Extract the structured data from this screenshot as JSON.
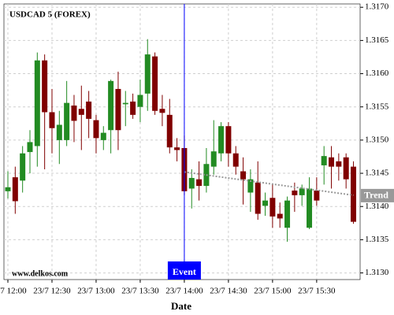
{
  "chart_data": {
    "type": "candlestick",
    "title": "USDCAD 5 (FOREX)",
    "watermark": "www.delkos.com",
    "x_label": "Date",
    "categories": [
      "23/7 12:00",
      "23/7 12:05",
      "23/7 12:10",
      "23/7 12:15",
      "23/7 12:20",
      "23/7 12:25",
      "23/7 12:30",
      "23/7 12:35",
      "23/7 12:40",
      "23/7 12:45",
      "23/7 12:50",
      "23/7 12:55",
      "23/7 13:00",
      "23/7 13:05",
      "23/7 13:10",
      "23/7 13:15",
      "23/7 13:20",
      "23/7 13:25",
      "23/7 13:30",
      "23/7 13:35",
      "23/7 13:40",
      "23/7 13:45",
      "23/7 13:50",
      "23/7 13:55",
      "23/7 14:00",
      "23/7 14:05",
      "23/7 14:10",
      "23/7 14:15",
      "23/7 14:20",
      "23/7 14:25",
      "23/7 14:30",
      "23/7 14:35",
      "23/7 14:40",
      "23/7 14:45",
      "23/7 14:50",
      "23/7 14:55",
      "23/7 15:00",
      "23/7 15:05",
      "23/7 15:10",
      "23/7 15:15",
      "23/7 15:20",
      "23/7 15:25",
      "23/7 15:30",
      "23/7 15:35",
      "23/7 15:40",
      "23/7 15:45",
      "23/7 15:50",
      "23/7 15:55"
    ],
    "open": [
      1.31423,
      1.31444,
      1.31439,
      1.31482,
      1.31491,
      1.3162,
      1.31542,
      1.315,
      1.315,
      1.31552,
      1.31547,
      1.31558,
      1.3153,
      1.315,
      1.31515,
      1.31577,
      1.31554,
      1.31558,
      1.3155,
      1.3157,
      1.31626,
      1.31547,
      1.31538,
      1.31489,
      1.31488,
      1.31427,
      1.31441,
      1.31431,
      1.3146,
      1.3148,
      1.31521,
      1.3148,
      1.31453,
      1.31421,
      1.31436,
      1.31401,
      1.31413,
      1.31389,
      1.31368,
      1.31424,
      1.31417,
      1.31368,
      1.31424,
      1.31462,
      1.31474,
      1.31468,
      1.31474,
      1.3146
    ],
    "high": [
      1.31453,
      1.3146,
      1.31491,
      1.31515,
      1.31632,
      1.31629,
      1.31577,
      1.31544,
      1.31589,
      1.31568,
      1.31582,
      1.31574,
      1.31538,
      1.31521,
      1.31591,
      1.31603,
      1.31574,
      1.3157,
      1.31591,
      1.31652,
      1.31632,
      1.31568,
      1.31562,
      1.31503,
      1.31507,
      1.31456,
      1.31468,
      1.31488,
      1.3153,
      1.31527,
      1.31527,
      1.31491,
      1.31474,
      1.31456,
      1.31468,
      1.31421,
      1.31433,
      1.31406,
      1.31415,
      1.31436,
      1.31433,
      1.31444,
      1.31444,
      1.31491,
      1.31491,
      1.3148,
      1.3148,
      1.31468
    ],
    "low": [
      1.31412,
      1.31389,
      1.31421,
      1.3145,
      1.3146,
      1.31456,
      1.3148,
      1.31464,
      1.31491,
      1.31497,
      1.31485,
      1.31503,
      1.3148,
      1.31485,
      1.3148,
      1.31485,
      1.31521,
      1.31532,
      1.31527,
      1.31544,
      1.31538,
      1.31521,
      1.3148,
      1.31468,
      1.31417,
      1.31397,
      1.31409,
      1.31421,
      1.31448,
      1.31468,
      1.3146,
      1.31448,
      1.31403,
      1.31392,
      1.3138,
      1.31386,
      1.31368,
      1.31368,
      1.31347,
      1.31392,
      1.31401,
      1.31366,
      1.31401,
      1.31433,
      1.31427,
      1.31439,
      1.31427,
      1.31374
    ],
    "close": [
      1.31429,
      1.31408,
      1.3148,
      1.31497,
      1.3162,
      1.31542,
      1.31518,
      1.31523,
      1.31556,
      1.31529,
      1.31538,
      1.31532,
      1.31503,
      1.31511,
      1.31589,
      1.31515,
      1.31556,
      1.31538,
      1.31568,
      1.31629,
      1.31544,
      1.31541,
      1.31489,
      1.31485,
      1.31423,
      1.31443,
      1.31431,
      1.31464,
      1.31483,
      1.31521,
      1.3148,
      1.3146,
      1.31441,
      1.31441,
      1.31389,
      1.31409,
      1.31385,
      1.31382,
      1.31409,
      1.31417,
      1.31427,
      1.31427,
      1.31409,
      1.31476,
      1.3146,
      1.3146,
      1.31441,
      1.31377
    ],
    "up_color": "#228b22",
    "down_color": "#800000",
    "ylim": [
      1.3129,
      1.31705
    ],
    "yticks": [
      {
        "value": 1.317,
        "label": "1.3170"
      },
      1.3165,
      {
        "value": 1.316,
        "label": "1.3160"
      },
      1.3155,
      {
        "value": 1.315,
        "label": "1.3150"
      },
      1.3145,
      {
        "value": 1.314,
        "label": "1.3140"
      },
      1.3135,
      {
        "value": 1.313,
        "label": "1.3130"
      }
    ],
    "xticks": [
      "23/7 12:00",
      "23/7 12:30",
      "23/7 13:00",
      "23/7 13:30",
      "23/7 14:00",
      "23/7 14:30",
      "23/7 15:00",
      "23/7 15:30"
    ],
    "grid": true,
    "event": {
      "label": "Event",
      "x": "23/7 14:00",
      "color": "#0000ff"
    },
    "trend": {
      "label": "Trend",
      "x": [
        "23/7 14:00",
        "23/7 15:55"
      ],
      "values": [
        1.31452,
        1.31417
      ],
      "color": "#999999"
    }
  }
}
